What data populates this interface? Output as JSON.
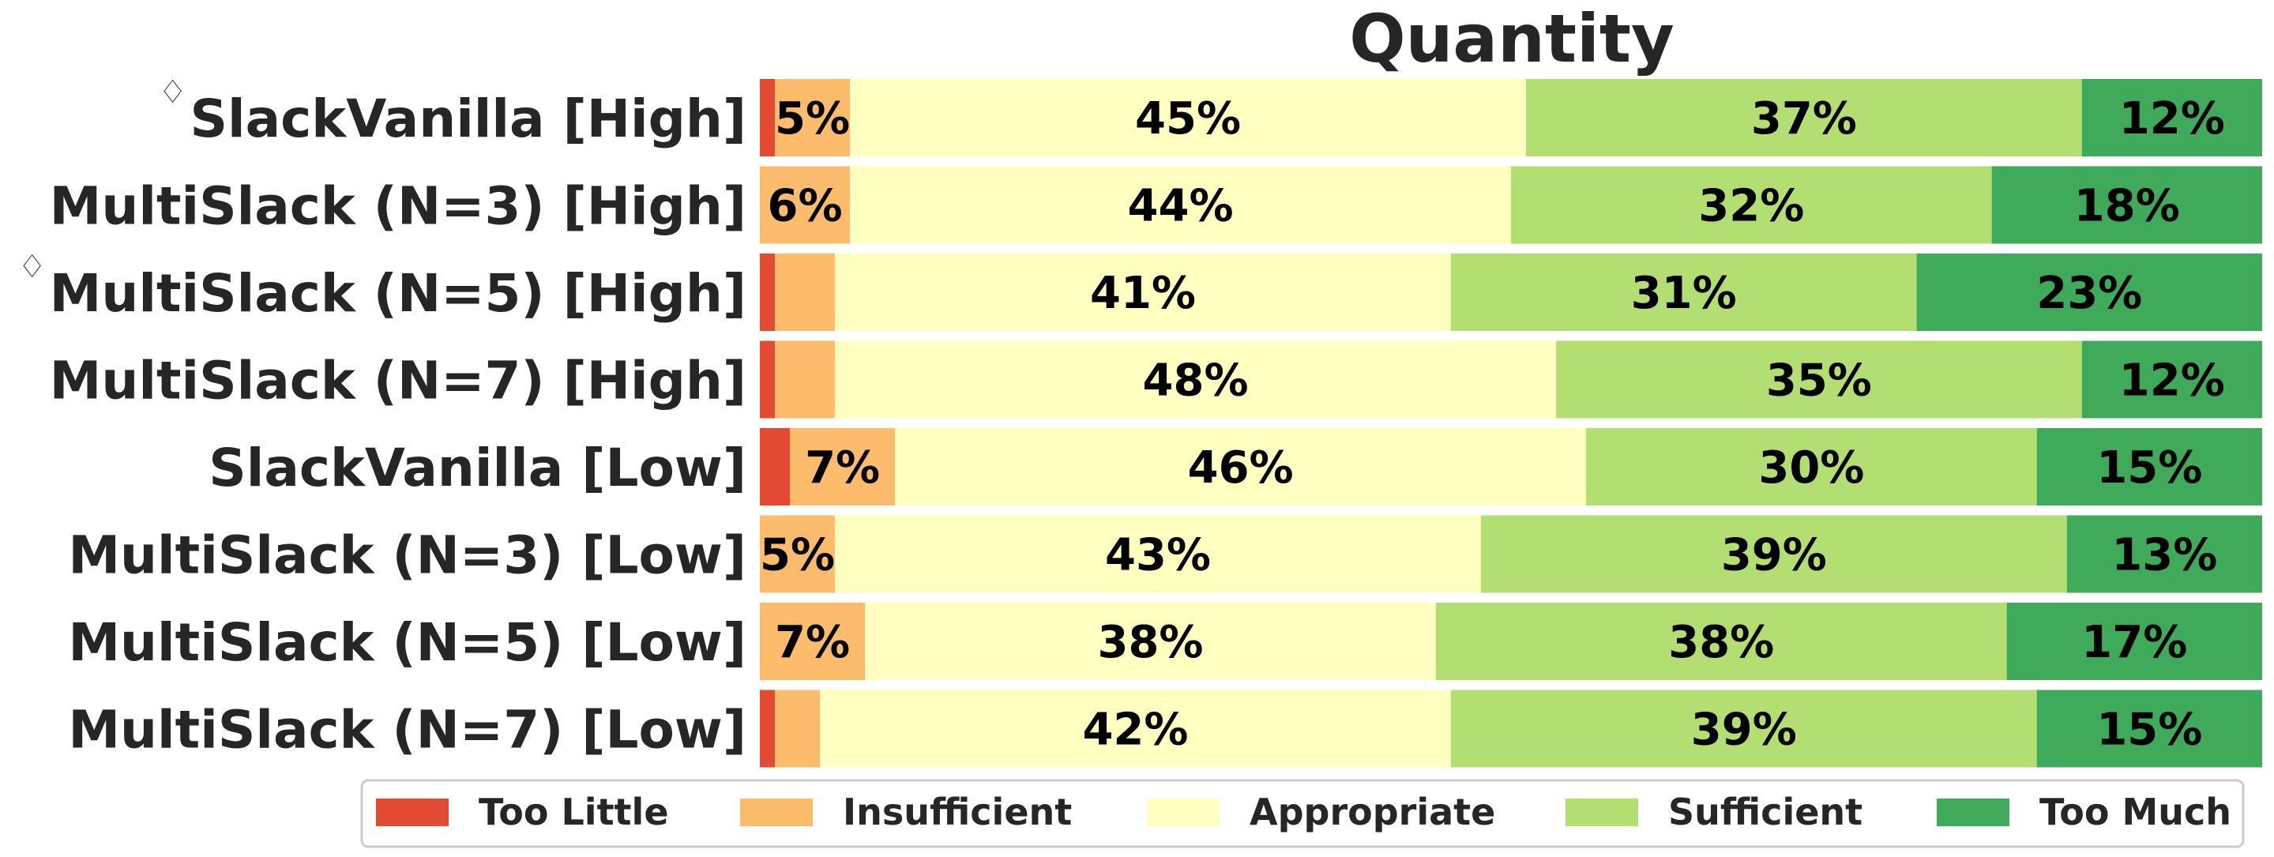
{
  "chart_data": {
    "type": "bar",
    "orientation": "horizontal",
    "stacked": true,
    "title": "Quantity",
    "xlim": [
      0,
      100
    ],
    "categories": [
      {
        "label": "SlackVanilla [High]",
        "marker": "♢"
      },
      {
        "label": "MultiSlack (N=3) [High]",
        "marker": ""
      },
      {
        "label": "MultiSlack (N=5) [High]",
        "marker": "♢"
      },
      {
        "label": "MultiSlack (N=7) [High]",
        "marker": ""
      },
      {
        "label": "SlackVanilla [Low]",
        "marker": ""
      },
      {
        "label": "MultiSlack (N=3) [Low]",
        "marker": ""
      },
      {
        "label": "MultiSlack (N=5) [Low]",
        "marker": ""
      },
      {
        "label": "MultiSlack (N=7) [Low]",
        "marker": ""
      }
    ],
    "series": [
      {
        "name": "Too Little",
        "color": "#e34a33",
        "values": [
          1,
          0,
          1,
          1,
          2,
          0,
          0,
          1
        ]
      },
      {
        "name": "Insufficient",
        "color": "#fdbb6c",
        "values": [
          5,
          6,
          4,
          4,
          7,
          5,
          7,
          3
        ]
      },
      {
        "name": "Appropriate",
        "color": "#ffffbf",
        "values": [
          45,
          44,
          41,
          48,
          46,
          43,
          38,
          42
        ]
      },
      {
        "name": "Sufficient",
        "color": "#b3df72",
        "values": [
          37,
          32,
          31,
          35,
          30,
          39,
          38,
          39
        ]
      },
      {
        "name": "Too Much",
        "color": "#3faa59",
        "values": [
          12,
          18,
          23,
          12,
          15,
          13,
          17,
          15
        ]
      }
    ],
    "data_labels": [
      [
        "",
        "5%",
        "45%",
        "37%",
        "12%"
      ],
      [
        "",
        "6%",
        "44%",
        "32%",
        "18%"
      ],
      [
        "",
        "",
        "41%",
        "31%",
        "23%"
      ],
      [
        "",
        "",
        "48%",
        "35%",
        "12%"
      ],
      [
        "",
        "7%",
        "46%",
        "30%",
        "15%"
      ],
      [
        "",
        "5%",
        "43%",
        "39%",
        "13%"
      ],
      [
        "",
        "7%",
        "38%",
        "38%",
        "17%"
      ],
      [
        "",
        "",
        "42%",
        "39%",
        "15%"
      ]
    ],
    "legend": {
      "position": "bottom",
      "ncol": 5
    },
    "grid": false
  }
}
